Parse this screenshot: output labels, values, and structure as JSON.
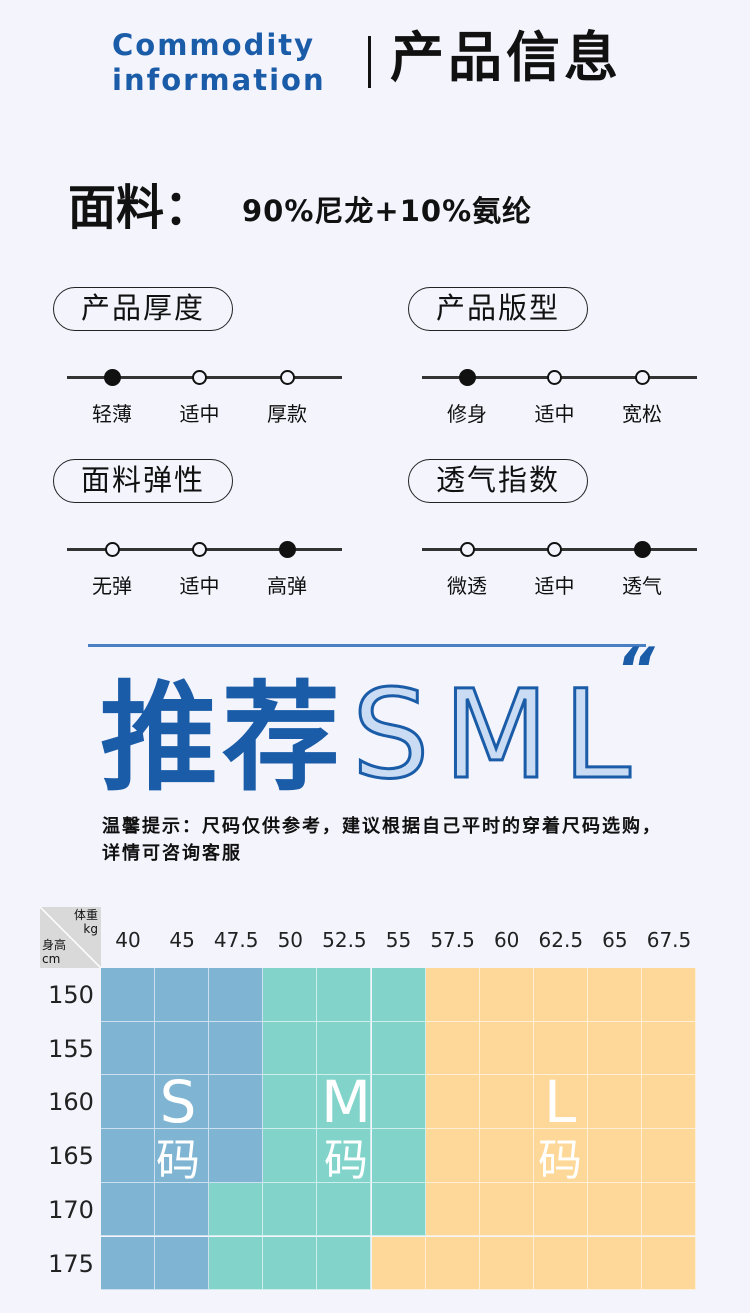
{
  "header": {
    "en_line1": "Commodity",
    "en_line2": "information",
    "cn_title": "产品信息"
  },
  "fabric": {
    "label": "面料：",
    "value": "90%尼龙+10%氨纶"
  },
  "attributes": [
    {
      "title": "产品厚度",
      "options": [
        "轻薄",
        "适中",
        "厚款"
      ],
      "selected": 0
    },
    {
      "title": "产品版型",
      "options": [
        "修身",
        "适中",
        "宽松"
      ],
      "selected": 0
    },
    {
      "title": "面料弹性",
      "options": [
        "无弹",
        "适中",
        "高弹"
      ],
      "selected": 2
    },
    {
      "title": "透气指数",
      "options": [
        "微透",
        "适中",
        "透气"
      ],
      "selected": 2
    }
  ],
  "recommend": {
    "title": "推荐",
    "sizes_text": "SML",
    "quote": "“",
    "tip": "温馨提示：尺码仅供参考，建议根据自己平时的穿着尺码选购，详情可咨询客服"
  },
  "size_chart": {
    "corner_weight": "体重",
    "corner_weight_unit": "kg",
    "corner_height": "身高",
    "corner_height_unit": "cm",
    "weights": [
      "40",
      "45",
      "47.5",
      "50",
      "52.5",
      "55",
      "57.5",
      "60",
      "62.5",
      "65",
      "67.5"
    ],
    "heights": [
      "150",
      "155",
      "160",
      "165",
      "170",
      "175"
    ],
    "grid": [
      [
        "S",
        "S",
        "S",
        "M",
        "M",
        "M",
        "L",
        "L",
        "L",
        "L",
        "L"
      ],
      [
        "S",
        "S",
        "S",
        "M",
        "M",
        "M",
        "L",
        "L",
        "L",
        "L",
        "L"
      ],
      [
        "S",
        "S",
        "S",
        "M",
        "M",
        "M",
        "L",
        "L",
        "L",
        "L",
        "L"
      ],
      [
        "S",
        "S",
        "S",
        "M",
        "M",
        "M",
        "L",
        "L",
        "L",
        "L",
        "L"
      ],
      [
        "S",
        "S",
        "M",
        "M",
        "M",
        "M",
        "L",
        "L",
        "L",
        "L",
        "L"
      ],
      [
        "S",
        "S",
        "M",
        "M",
        "M",
        "L",
        "L",
        "L",
        "L",
        "L",
        "L"
      ]
    ],
    "labels": [
      {
        "size": "S",
        "suffix": "码"
      },
      {
        "size": "M",
        "suffix": "码"
      },
      {
        "size": "L",
        "suffix": "码"
      }
    ],
    "colors": {
      "S": "#7fb5d2",
      "M": "#82d4cb",
      "L": "#fdd898"
    }
  },
  "colors": {
    "accent": "#1a5ca8",
    "background": "#f4f4fd"
  }
}
